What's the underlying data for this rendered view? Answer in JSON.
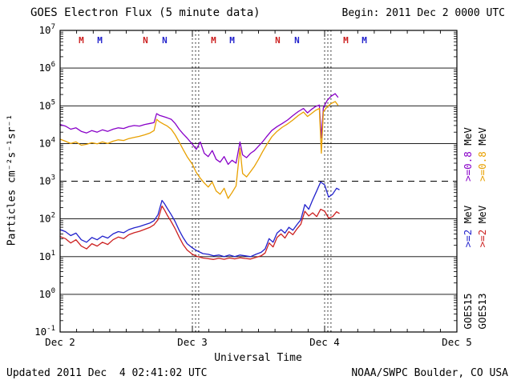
{
  "header": {
    "begin": "Begin: 2011 Dec 2 0000 UTC"
  },
  "footer": {
    "updated": "Updated 2011 Dec  4 02:41:02 UTC",
    "credit": "NOAA/SWPC Boulder, CO USA"
  },
  "chart_data": {
    "type": "line",
    "title": "GOES Electron Flux (5 minute data)",
    "xlabel": "Universal Time",
    "ylabel": "Particles cm⁻²s⁻¹sr⁻¹",
    "y_scale": "log",
    "ylim": [
      0.1,
      10000000
    ],
    "y_exponents": [
      7,
      6,
      5,
      4,
      3,
      2,
      1,
      0,
      -1
    ],
    "threshold": 1000,
    "xlim_days": [
      0,
      3
    ],
    "x_ticks": [
      {
        "day": 0,
        "label": "Dec 2"
      },
      {
        "day": 1,
        "label": "Dec 3"
      },
      {
        "day": 2,
        "label": "Dec 4"
      },
      {
        "day": 3,
        "label": "Dec 5"
      }
    ],
    "day_boundary_lines": [
      1,
      2
    ],
    "sat_markers": [
      {
        "label": "M",
        "color": "#CC2020",
        "day": 0.16
      },
      {
        "label": "M",
        "color": "#2222CC",
        "day": 0.3
      },
      {
        "label": "N",
        "color": "#CC2020",
        "day": 0.645
      },
      {
        "label": "N",
        "color": "#2222CC",
        "day": 0.79
      },
      {
        "label": "M",
        "color": "#CC2020",
        "day": 1.16
      },
      {
        "label": "M",
        "color": "#2222CC",
        "day": 1.3
      },
      {
        "label": "N",
        "color": "#CC2020",
        "day": 1.645
      },
      {
        "label": "N",
        "color": "#2222CC",
        "day": 1.79
      },
      {
        "label": "M",
        "color": "#CC2020",
        "day": 2.16
      },
      {
        "label": "M",
        "color": "#2222CC",
        "day": 2.3
      }
    ],
    "right_labels": [
      {
        "col": 0,
        "row": 0,
        "value": ">=0.8",
        "unit": "MeV",
        "color": "#8800C8"
      },
      {
        "col": 1,
        "row": 0,
        "value": ">=0.8",
        "unit": "MeV",
        "color": "#E8A000"
      },
      {
        "col": 0,
        "row": 1,
        "value": ">=2",
        "unit": "MeV",
        "color": "#2222CC"
      },
      {
        "col": 1,
        "row": 1,
        "value": ">=2",
        "unit": "MeV",
        "color": "#CC2020"
      },
      {
        "col": 0,
        "row": 2,
        "value": "GOES15",
        "unit": "",
        "color": "#000000"
      },
      {
        "col": 1,
        "row": 2,
        "value": "GOES13",
        "unit": "",
        "color": "#000000"
      }
    ],
    "series": [
      {
        "name": "GOES15 >=0.8 MeV",
        "color": "#8800C8",
        "points": [
          [
            0.0,
            32000.0
          ],
          [
            0.04,
            29000.0
          ],
          [
            0.08,
            24000.0
          ],
          [
            0.12,
            26000.0
          ],
          [
            0.16,
            21000.0
          ],
          [
            0.2,
            19000.0
          ],
          [
            0.24,
            22000.0
          ],
          [
            0.28,
            20000.0
          ],
          [
            0.32,
            23000.0
          ],
          [
            0.36,
            21000.0
          ],
          [
            0.4,
            24000.0
          ],
          [
            0.44,
            26000.0
          ],
          [
            0.48,
            25000.0
          ],
          [
            0.52,
            28000.0
          ],
          [
            0.56,
            30000.0
          ],
          [
            0.6,
            29000.0
          ],
          [
            0.64,
            32000.0
          ],
          [
            0.68,
            34000.0
          ],
          [
            0.71,
            36000.0
          ],
          [
            0.73,
            62000.0
          ],
          [
            0.75,
            56000.0
          ],
          [
            0.78,
            52000.0
          ],
          [
            0.81,
            48000.0
          ],
          [
            0.84,
            44000.0
          ],
          [
            0.87,
            34000.0
          ],
          [
            0.9,
            24000.0
          ],
          [
            0.93,
            18000.0
          ],
          [
            0.96,
            14000.0
          ],
          [
            1.0,
            9500.0
          ],
          [
            1.03,
            7000.0
          ],
          [
            1.06,
            11000.0
          ],
          [
            1.09,
            5500.0
          ],
          [
            1.12,
            4500.0
          ],
          [
            1.15,
            6500.0
          ],
          [
            1.18,
            3800.0
          ],
          [
            1.21,
            3200.0
          ],
          [
            1.24,
            4500.0
          ],
          [
            1.27,
            2800.0
          ],
          [
            1.3,
            3600.0
          ],
          [
            1.33,
            3000.0
          ],
          [
            1.36,
            11000.0
          ],
          [
            1.38,
            5000.0
          ],
          [
            1.41,
            4200.0
          ],
          [
            1.44,
            5500.0
          ],
          [
            1.47,
            6500.0
          ],
          [
            1.5,
            8500.0
          ],
          [
            1.53,
            11000.0
          ],
          [
            1.56,
            15000.0
          ],
          [
            1.6,
            22000.0
          ],
          [
            1.64,
            28000.0
          ],
          [
            1.68,
            34000.0
          ],
          [
            1.72,
            42000.0
          ],
          [
            1.76,
            55000.0
          ],
          [
            1.8,
            70000.0
          ],
          [
            1.84,
            85000.0
          ],
          [
            1.87,
            65000.0
          ],
          [
            1.9,
            80000.0
          ],
          [
            1.93,
            95000.0
          ],
          [
            1.96,
            105000.0
          ],
          [
            1.975,
            14000.0
          ],
          [
            1.99,
            90000.0
          ],
          [
            2.02,
            140000.0
          ],
          [
            2.05,
            180000.0
          ],
          [
            2.08,
            210000.0
          ],
          [
            2.1,
            170000.0
          ]
        ]
      },
      {
        "name": "GOES13 >=0.8 MeV",
        "color": "#E8A000",
        "points": [
          [
            0.0,
            13000.0
          ],
          [
            0.04,
            11500.0
          ],
          [
            0.08,
            10000.0
          ],
          [
            0.12,
            11000.0
          ],
          [
            0.16,
            9000.0
          ],
          [
            0.2,
            9500.0
          ],
          [
            0.24,
            10500.0
          ],
          [
            0.28,
            9800.0
          ],
          [
            0.32,
            11000.0
          ],
          [
            0.36,
            10000.0
          ],
          [
            0.4,
            11500.0
          ],
          [
            0.44,
            12500.0
          ],
          [
            0.48,
            12000.0
          ],
          [
            0.52,
            13500.0
          ],
          [
            0.56,
            14500.0
          ],
          [
            0.6,
            15500.0
          ],
          [
            0.64,
            17000.0
          ],
          [
            0.68,
            19000.0
          ],
          [
            0.71,
            22000.0
          ],
          [
            0.73,
            44000.0
          ],
          [
            0.75,
            38000.0
          ],
          [
            0.78,
            33000.0
          ],
          [
            0.81,
            29000.0
          ],
          [
            0.84,
            24000.0
          ],
          [
            0.87,
            17000.0
          ],
          [
            0.9,
            11000.0
          ],
          [
            0.93,
            7000.0
          ],
          [
            0.96,
            4500.0
          ],
          [
            1.0,
            2800.0
          ],
          [
            1.03,
            1700.0
          ],
          [
            1.06,
            1200.0
          ],
          [
            1.09,
            900.0
          ],
          [
            1.12,
            700.0
          ],
          [
            1.15,
            950.0
          ],
          [
            1.18,
            550.0
          ],
          [
            1.21,
            450.0
          ],
          [
            1.24,
            650.0
          ],
          [
            1.27,
            350.0
          ],
          [
            1.3,
            500.0
          ],
          [
            1.33,
            750.0
          ],
          [
            1.36,
            7500.0
          ],
          [
            1.38,
            1600.0
          ],
          [
            1.41,
            1300.0
          ],
          [
            1.44,
            1800.0
          ],
          [
            1.47,
            2500.0
          ],
          [
            1.5,
            3800.0
          ],
          [
            1.53,
            6000.0
          ],
          [
            1.56,
            9000.0
          ],
          [
            1.6,
            15000.0
          ],
          [
            1.64,
            21000.0
          ],
          [
            1.68,
            27000.0
          ],
          [
            1.72,
            33000.0
          ],
          [
            1.76,
            42000.0
          ],
          [
            1.8,
            55000.0
          ],
          [
            1.84,
            68000.0
          ],
          [
            1.87,
            52000.0
          ],
          [
            1.9,
            62000.0
          ],
          [
            1.93,
            75000.0
          ],
          [
            1.96,
            85000.0
          ],
          [
            1.975,
            5500.0
          ],
          [
            1.99,
            70000.0
          ],
          [
            2.02,
            95000.0
          ],
          [
            2.05,
            115000.0
          ],
          [
            2.08,
            130000.0
          ],
          [
            2.1,
            105000.0
          ]
        ]
      },
      {
        "name": "GOES15 >=2 MeV",
        "color": "#2222CC",
        "points": [
          [
            0.0,
            52.0
          ],
          [
            0.04,
            46.0
          ],
          [
            0.08,
            36.0
          ],
          [
            0.12,
            42.0
          ],
          [
            0.16,
            28.0
          ],
          [
            0.2,
            24.0
          ],
          [
            0.24,
            32.0
          ],
          [
            0.28,
            28.0
          ],
          [
            0.32,
            35.0
          ],
          [
            0.36,
            31.0
          ],
          [
            0.4,
            40.0
          ],
          [
            0.44,
            46.0
          ],
          [
            0.48,
            43.0
          ],
          [
            0.52,
            52.0
          ],
          [
            0.56,
            58.0
          ],
          [
            0.6,
            63.0
          ],
          [
            0.64,
            70.0
          ],
          [
            0.68,
            78.0
          ],
          [
            0.71,
            90.0
          ],
          [
            0.74,
            130.0
          ],
          [
            0.77,
            310.0
          ],
          [
            0.79,
            250.0
          ],
          [
            0.81,
            190.0
          ],
          [
            0.84,
            130.0
          ],
          [
            0.87,
            85.0
          ],
          [
            0.9,
            50.0
          ],
          [
            0.93,
            32.0
          ],
          [
            0.96,
            22.0
          ],
          [
            1.0,
            17.0
          ],
          [
            1.04,
            14.0
          ],
          [
            1.08,
            12.0
          ],
          [
            1.12,
            11.5
          ],
          [
            1.16,
            10.5
          ],
          [
            1.2,
            11.0
          ],
          [
            1.24,
            10.0
          ],
          [
            1.28,
            11.0
          ],
          [
            1.32,
            10.0
          ],
          [
            1.36,
            11.0
          ],
          [
            1.4,
            10.5
          ],
          [
            1.44,
            10.0
          ],
          [
            1.48,
            11.5
          ],
          [
            1.52,
            13.0
          ],
          [
            1.55,
            16.0
          ],
          [
            1.58,
            30.0
          ],
          [
            1.61,
            24.0
          ],
          [
            1.64,
            42.0
          ],
          [
            1.67,
            52.0
          ],
          [
            1.7,
            42.0
          ],
          [
            1.73,
            60.0
          ],
          [
            1.76,
            50.0
          ],
          [
            1.79,
            70.0
          ],
          [
            1.82,
            95.0
          ],
          [
            1.85,
            240.0
          ],
          [
            1.88,
            180.0
          ],
          [
            1.91,
            320.0
          ],
          [
            1.94,
            550.0
          ],
          [
            1.97,
            950.0
          ],
          [
            2.0,
            800.0
          ],
          [
            2.03,
            380.0
          ],
          [
            2.06,
            450.0
          ],
          [
            2.09,
            650.0
          ],
          [
            2.11,
            600.0
          ]
        ]
      },
      {
        "name": "GOES13 >=2 MeV",
        "color": "#CC2020",
        "points": [
          [
            0.0,
            34.0
          ],
          [
            0.04,
            30.0
          ],
          [
            0.08,
            23.0
          ],
          [
            0.12,
            28.0
          ],
          [
            0.16,
            19.0
          ],
          [
            0.2,
            16.0
          ],
          [
            0.24,
            22.0
          ],
          [
            0.28,
            19.0
          ],
          [
            0.32,
            24.0
          ],
          [
            0.36,
            21.0
          ],
          [
            0.4,
            28.0
          ],
          [
            0.44,
            33.0
          ],
          [
            0.48,
            30.0
          ],
          [
            0.52,
            38.0
          ],
          [
            0.56,
            43.0
          ],
          [
            0.6,
            47.0
          ],
          [
            0.64,
            53.0
          ],
          [
            0.68,
            60.0
          ],
          [
            0.71,
            70.0
          ],
          [
            0.74,
            95.0
          ],
          [
            0.77,
            220.0
          ],
          [
            0.79,
            170.0
          ],
          [
            0.81,
            125.0
          ],
          [
            0.84,
            85.0
          ],
          [
            0.87,
            55.0
          ],
          [
            0.9,
            33.0
          ],
          [
            0.93,
            21.0
          ],
          [
            0.96,
            15.0
          ],
          [
            1.0,
            11.5
          ],
          [
            1.04,
            10.0
          ],
          [
            1.08,
            9.2
          ],
          [
            1.12,
            8.8
          ],
          [
            1.16,
            8.4
          ],
          [
            1.2,
            9.0
          ],
          [
            1.24,
            8.5
          ],
          [
            1.28,
            9.2
          ],
          [
            1.32,
            8.7
          ],
          [
            1.36,
            9.3
          ],
          [
            1.4,
            8.9
          ],
          [
            1.44,
            8.6
          ],
          [
            1.48,
            9.5
          ],
          [
            1.52,
            10.5
          ],
          [
            1.55,
            12.5
          ],
          [
            1.58,
            23.0
          ],
          [
            1.61,
            18.0
          ],
          [
            1.64,
            32.0
          ],
          [
            1.67,
            40.0
          ],
          [
            1.7,
            31.0
          ],
          [
            1.73,
            46.0
          ],
          [
            1.76,
            38.0
          ],
          [
            1.79,
            54.0
          ],
          [
            1.82,
            72.0
          ],
          [
            1.85,
            160.0
          ],
          [
            1.88,
            120.0
          ],
          [
            1.91,
            145.0
          ],
          [
            1.94,
            115.0
          ],
          [
            1.97,
            180.0
          ],
          [
            2.0,
            160.0
          ],
          [
            2.03,
            105.0
          ],
          [
            2.06,
            115.0
          ],
          [
            2.09,
            155.0
          ],
          [
            2.11,
            140.0
          ]
        ]
      }
    ]
  }
}
